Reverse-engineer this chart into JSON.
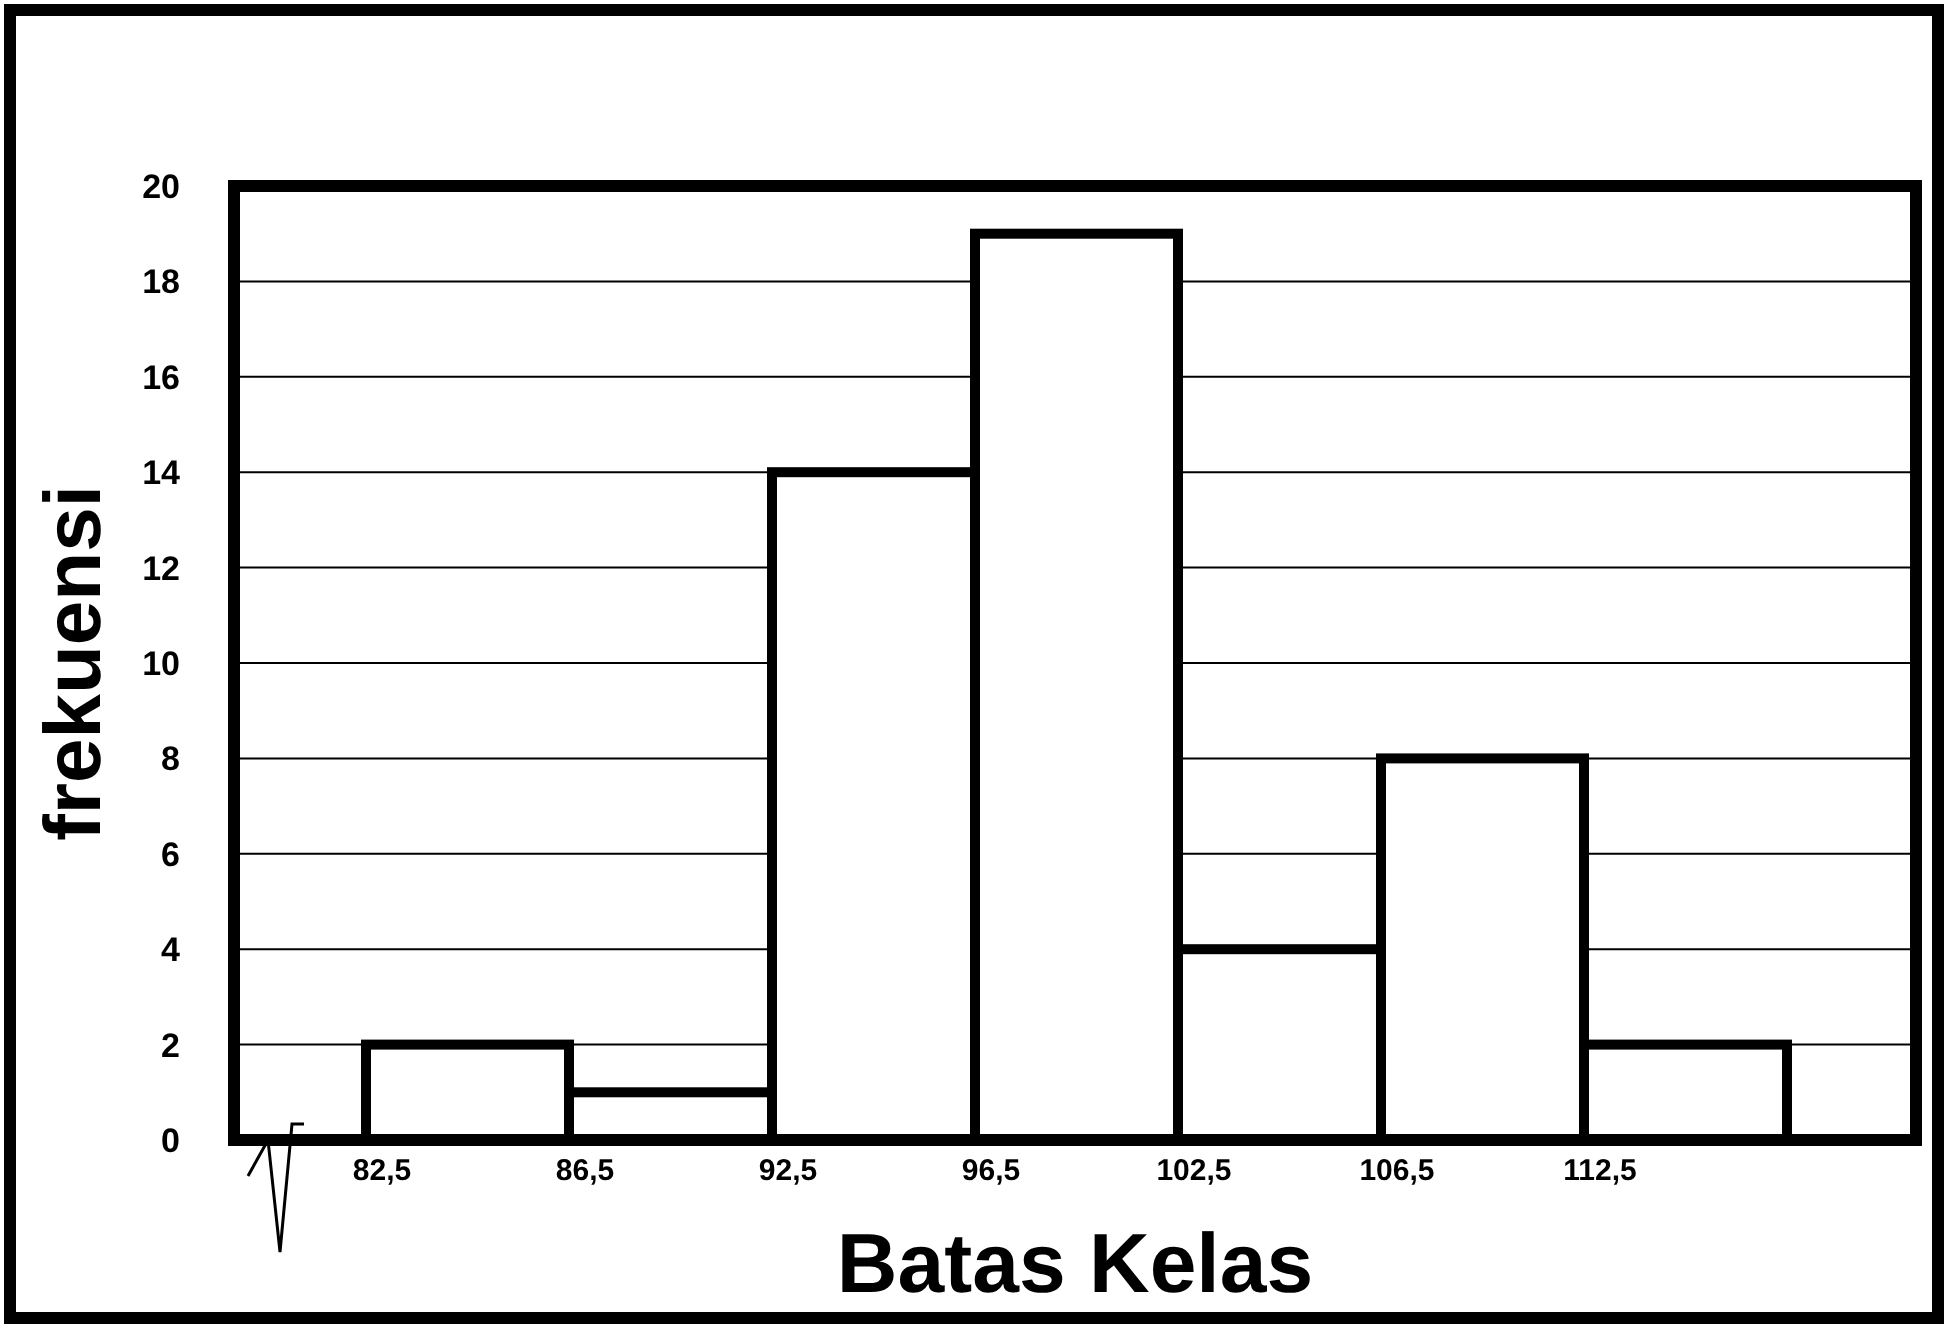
{
  "chart_data": {
    "type": "bar",
    "xlabel": "Batas Kelas",
    "ylabel": "frekuensi",
    "categories": [
      "82,5",
      "86,5",
      "92,5",
      "96,5",
      "102,5",
      "106,5",
      "112,5"
    ],
    "values": [
      2,
      1,
      14,
      19,
      4,
      8,
      2
    ],
    "color": "#ffffff",
    "ylim": [
      0,
      20
    ],
    "yticks": [
      0,
      2,
      4,
      6,
      8,
      10,
      12,
      14,
      16,
      18,
      20
    ],
    "grid": "y"
  }
}
